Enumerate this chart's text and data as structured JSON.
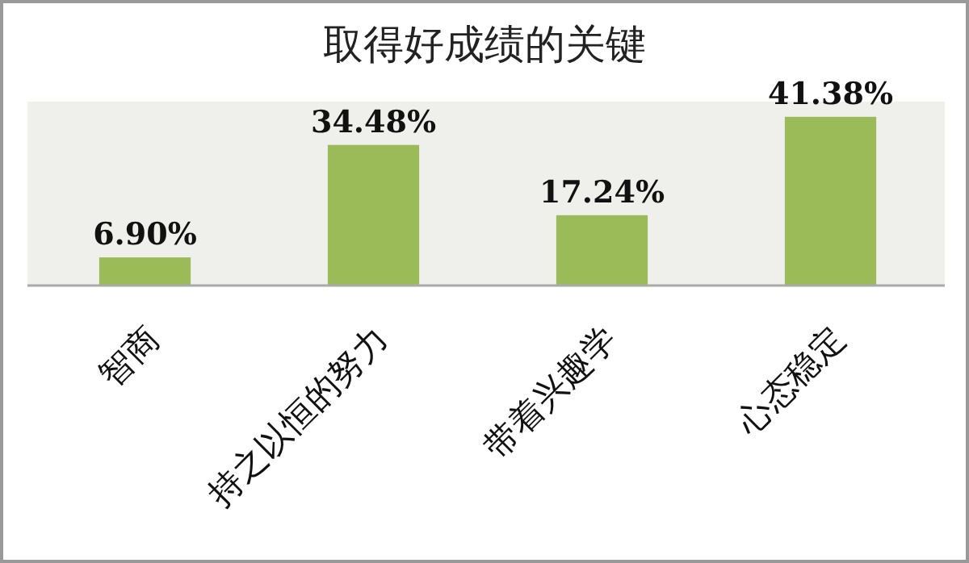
{
  "chart_data": {
    "type": "bar",
    "title": "取得好成绩的关键",
    "categories": [
      "智商",
      "持之以恒的努力",
      "带着兴趣学",
      "心态稳定"
    ],
    "values": [
      6.9,
      34.48,
      17.24,
      41.38
    ],
    "value_labels": [
      "6.90%",
      "34.48%",
      "17.24%",
      "41.38%"
    ],
    "color": "#9bbb59"
  }
}
